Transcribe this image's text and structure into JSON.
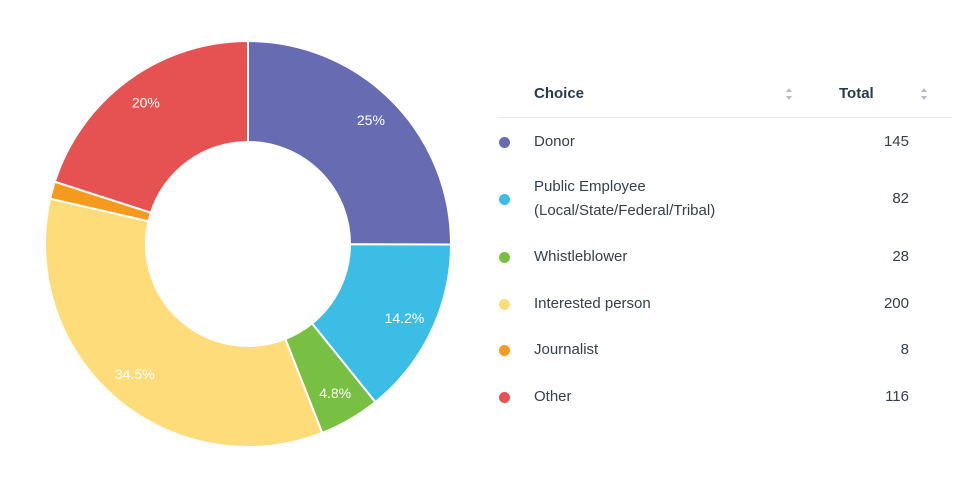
{
  "chart_data": {
    "type": "pie",
    "donut": true,
    "categories": [
      "Donor",
      "Public Employee (Local/State/Federal/Tribal)",
      "Whistleblower",
      "Interested person",
      "Journalist",
      "Other"
    ],
    "values": [
      145,
      82,
      28,
      200,
      8,
      116
    ],
    "slice_labels": [
      "25%",
      "14.2%",
      "4.8%",
      "34.5%",
      "",
      "20%"
    ],
    "colors": [
      "#666bb2",
      "#3bbde6",
      "#78c043",
      "#fedc7a",
      "#f59a1d",
      "#e65151"
    ]
  },
  "table": {
    "headers": {
      "choice": "Choice",
      "total": "Total"
    },
    "rows": [
      {
        "label_lines": [
          "Donor"
        ],
        "value": "145"
      },
      {
        "label_lines": [
          "Public Employee",
          "(Local/State/Federal/Tribal)"
        ],
        "value": "82"
      },
      {
        "label_lines": [
          "Whistleblower"
        ],
        "value": "28"
      },
      {
        "label_lines": [
          "Interested person"
        ],
        "value": "200"
      },
      {
        "label_lines": [
          "Journalist"
        ],
        "value": "8"
      },
      {
        "label_lines": [
          "Other"
        ],
        "value": "116"
      }
    ]
  },
  "icons": {
    "sort": "sort-updown-icon",
    "legend_marker": "circle"
  }
}
